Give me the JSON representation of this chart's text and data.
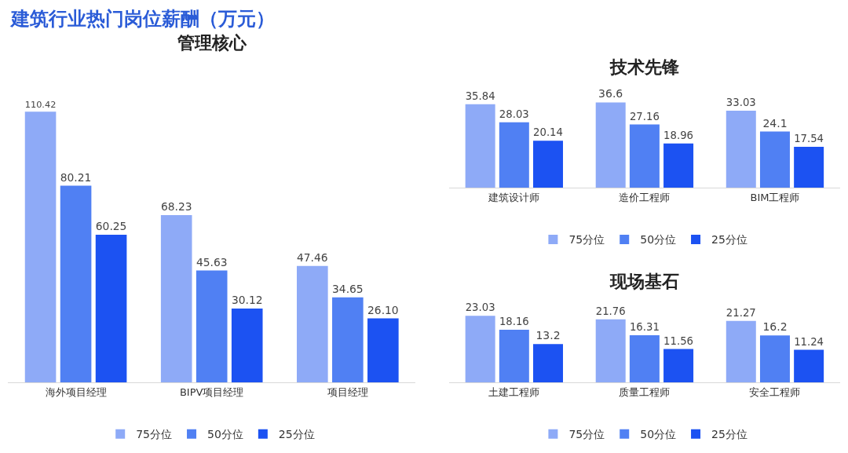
{
  "chart_data": [
    {
      "type": "bar",
      "title": "管理核心",
      "annotations": [
        "建筑行业热门岗位薪酬（万元）"
      ],
      "categories": [
        "海外项目经理",
        "BIPV项目经理",
        "项目经理"
      ],
      "legend": "bottom",
      "series": [
        {
          "name": "75分位",
          "color": "#8eaaf7",
          "values": [
            110.42,
            68.23,
            47.46
          ],
          "value_labels": [
            "110.42",
            "68.23",
            "47.46"
          ]
        },
        {
          "name": "50分位",
          "color": "#5080f3",
          "values": [
            80.21,
            45.63,
            34.65
          ],
          "value_labels": [
            "80.21",
            "45.63",
            "34.65"
          ]
        },
        {
          "name": "25分位",
          "color": "#1c52f2",
          "values": [
            60.25,
            30.12,
            26.1
          ],
          "value_labels": [
            "60.25",
            "30.12",
            "26.10"
          ]
        }
      ]
    },
    {
      "type": "bar",
      "title": "技术先锋",
      "categories": [
        "建筑设计师",
        "造价工程师",
        "BIM工程师"
      ],
      "legend": "bottom",
      "series": [
        {
          "name": "75分位",
          "color": "#8eaaf7",
          "values": [
            35.84,
            36.6,
            33.03
          ],
          "value_labels": [
            "35.84",
            "36.6",
            "33.03"
          ]
        },
        {
          "name": "50分位",
          "color": "#5080f3",
          "values": [
            28.03,
            27.16,
            24.1
          ],
          "value_labels": [
            "28.03",
            "27.16",
            "24.1"
          ]
        },
        {
          "name": "25分位",
          "color": "#1c52f2",
          "values": [
            20.14,
            18.96,
            17.54
          ],
          "value_labels": [
            "20.14",
            "18.96",
            "17.54"
          ]
        }
      ]
    },
    {
      "type": "bar",
      "title": "现场基石",
      "categories": [
        "土建工程师",
        "质量工程师",
        "安全工程师"
      ],
      "legend": "bottom",
      "series": [
        {
          "name": "75分位",
          "color": "#8eaaf7",
          "values": [
            23.03,
            21.76,
            21.27
          ],
          "value_labels": [
            "23.03",
            "21.76",
            "21.27"
          ]
        },
        {
          "name": "50分位",
          "color": "#5080f3",
          "values": [
            18.16,
            16.31,
            16.2
          ],
          "value_labels": [
            "18.16",
            "16.31",
            "16.2"
          ]
        },
        {
          "name": "25分位",
          "color": "#1c52f2",
          "values": [
            13.2,
            11.56,
            11.24
          ],
          "value_labels": [
            "13.2",
            "11.56",
            "11.24"
          ]
        }
      ]
    }
  ]
}
